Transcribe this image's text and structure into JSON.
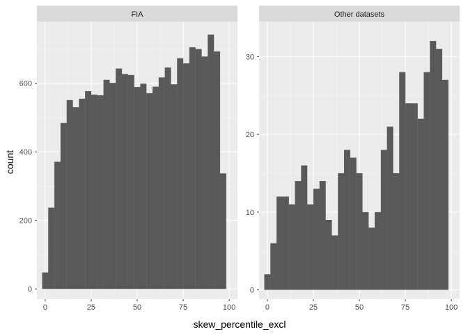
{
  "chart_data": {
    "type": "bar",
    "xlabel": "skew_percentile_excl",
    "ylabel": "count",
    "grid": true,
    "colors": {
      "bar": "#595959",
      "panel_background": "#ebebeb",
      "grid_major": "#ffffff",
      "strip_background": "#d9d9d9"
    },
    "panels": [
      {
        "title": "FIA",
        "xlim": [
          -4.5,
          104.5
        ],
        "ylim": [
          -30,
          780
        ],
        "x_ticks": [
          0,
          25,
          50,
          75,
          100
        ],
        "y_ticks": [
          0,
          200,
          400,
          600
        ],
        "bin_width": 3.333,
        "bins": [
          {
            "start": -1.667,
            "value": 48
          },
          {
            "start": 1.667,
            "value": 237
          },
          {
            "start": 5.0,
            "value": 371
          },
          {
            "start": 8.333,
            "value": 484
          },
          {
            "start": 11.667,
            "value": 551
          },
          {
            "start": 15.0,
            "value": 530
          },
          {
            "start": 18.333,
            "value": 555
          },
          {
            "start": 21.667,
            "value": 577
          },
          {
            "start": 25.0,
            "value": 567
          },
          {
            "start": 28.333,
            "value": 565
          },
          {
            "start": 31.667,
            "value": 610
          },
          {
            "start": 35.0,
            "value": 601
          },
          {
            "start": 38.333,
            "value": 643
          },
          {
            "start": 41.667,
            "value": 627
          },
          {
            "start": 45.0,
            "value": 624
          },
          {
            "start": 48.333,
            "value": 589
          },
          {
            "start": 51.667,
            "value": 599
          },
          {
            "start": 55.0,
            "value": 571
          },
          {
            "start": 58.333,
            "value": 590
          },
          {
            "start": 61.667,
            "value": 617
          },
          {
            "start": 65.0,
            "value": 646
          },
          {
            "start": 68.333,
            "value": 597
          },
          {
            "start": 71.667,
            "value": 673
          },
          {
            "start": 75.0,
            "value": 658
          },
          {
            "start": 78.333,
            "value": 705
          },
          {
            "start": 81.667,
            "value": 700
          },
          {
            "start": 85.0,
            "value": 678
          },
          {
            "start": 88.333,
            "value": 742
          },
          {
            "start": 91.667,
            "value": 693
          },
          {
            "start": 95.0,
            "value": 337
          }
        ]
      },
      {
        "title": "Other datasets",
        "xlim": [
          -4.5,
          104.5
        ],
        "ylim": [
          -1.2,
          34.5
        ],
        "x_ticks": [
          0,
          25,
          50,
          75,
          100
        ],
        "y_ticks": [
          0,
          10,
          20,
          30
        ],
        "bin_width": 3.333,
        "bins": [
          {
            "start": -1.667,
            "value": 2
          },
          {
            "start": 1.667,
            "value": 6
          },
          {
            "start": 5.0,
            "value": 12
          },
          {
            "start": 8.333,
            "value": 12
          },
          {
            "start": 11.667,
            "value": 11
          },
          {
            "start": 15.0,
            "value": 14
          },
          {
            "start": 18.333,
            "value": 16
          },
          {
            "start": 21.667,
            "value": 11
          },
          {
            "start": 25.0,
            "value": 13
          },
          {
            "start": 28.333,
            "value": 14
          },
          {
            "start": 31.667,
            "value": 9
          },
          {
            "start": 35.0,
            "value": 7
          },
          {
            "start": 38.333,
            "value": 15
          },
          {
            "start": 41.667,
            "value": 18
          },
          {
            "start": 45.0,
            "value": 17
          },
          {
            "start": 48.333,
            "value": 15
          },
          {
            "start": 51.667,
            "value": 10
          },
          {
            "start": 55.0,
            "value": 8
          },
          {
            "start": 58.333,
            "value": 10
          },
          {
            "start": 61.667,
            "value": 18
          },
          {
            "start": 65.0,
            "value": 21
          },
          {
            "start": 68.333,
            "value": 15
          },
          {
            "start": 71.667,
            "value": 28
          },
          {
            "start": 75.0,
            "value": 24
          },
          {
            "start": 78.333,
            "value": 24
          },
          {
            "start": 81.667,
            "value": 22
          },
          {
            "start": 85.0,
            "value": 28
          },
          {
            "start": 88.333,
            "value": 32
          },
          {
            "start": 91.667,
            "value": 31
          },
          {
            "start": 95.0,
            "value": 27
          }
        ]
      }
    ]
  }
}
